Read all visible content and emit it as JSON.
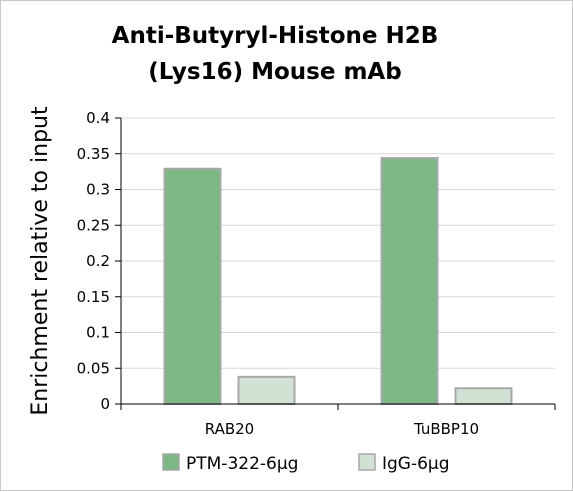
{
  "chart_data": {
    "type": "bar",
    "title": [
      "Anti-Butyryl-Histone H2B",
      "(Lys16) Mouse mAb"
    ],
    "xlabel": "",
    "ylabel": "Enrichment relative to input",
    "categories": [
      "RAB20",
      "TuBBP10"
    ],
    "series": [
      {
        "name": "PTM-322-6µg",
        "values": [
          0.329,
          0.344
        ],
        "color": "#7db884",
        "stroke": "#a8a8a8"
      },
      {
        "name": "IgG-6µg",
        "values": [
          0.038,
          0.022
        ],
        "color": "#d1e1d3",
        "stroke": "#a8a8a8"
      }
    ],
    "ylim": [
      0,
      0.4
    ],
    "yticks": [
      "0",
      "0.05",
      "0.1",
      "0.15",
      "0.2",
      "0.25",
      "0.3",
      "0.35",
      "0.4"
    ],
    "grid": true,
    "legend_position": "bottom"
  }
}
